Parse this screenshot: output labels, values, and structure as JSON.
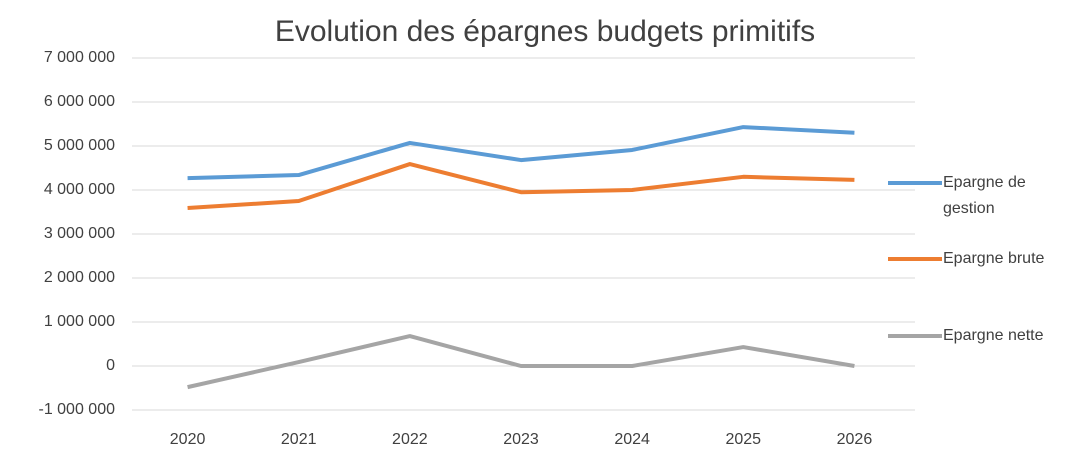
{
  "chart_data": {
    "type": "line",
    "title": "Evolution des épargnes  budgets primitifs",
    "categories": [
      "2020",
      "2021",
      "2022",
      "2023",
      "2024",
      "2025",
      "2026"
    ],
    "series": [
      {
        "name": "Epargne de gestion",
        "color": "#5b9bd5",
        "values": [
          4270000,
          4340000,
          5070000,
          4680000,
          4910000,
          5430000,
          5300000
        ]
      },
      {
        "name": "Epargne brute",
        "color": "#ed7d31",
        "values": [
          3590000,
          3750000,
          4590000,
          3950000,
          4000000,
          4300000,
          4230000
        ]
      },
      {
        "name": "Epargne nette",
        "color": "#a5a5a5",
        "values": [
          -480000,
          90000,
          680000,
          0,
          0,
          430000,
          0
        ]
      }
    ],
    "ylim": [
      -1000000,
      7000000
    ],
    "yticks": [
      {
        "value": -1000000,
        "label": "-1 000 000"
      },
      0,
      {
        "value": 1000000,
        "label": "1 000 000"
      },
      {
        "value": 2000000,
        "label": "2 000 000"
      },
      {
        "value": 3000000,
        "label": "3 000 000"
      },
      {
        "value": 4000000,
        "label": "4 000 000"
      },
      {
        "value": 5000000,
        "label": "5 000 000"
      },
      {
        "value": 6000000,
        "label": "6 000 000"
      },
      {
        "value": 7000000,
        "label": "7 000 000"
      }
    ],
    "grid": true,
    "legend": "right"
  }
}
